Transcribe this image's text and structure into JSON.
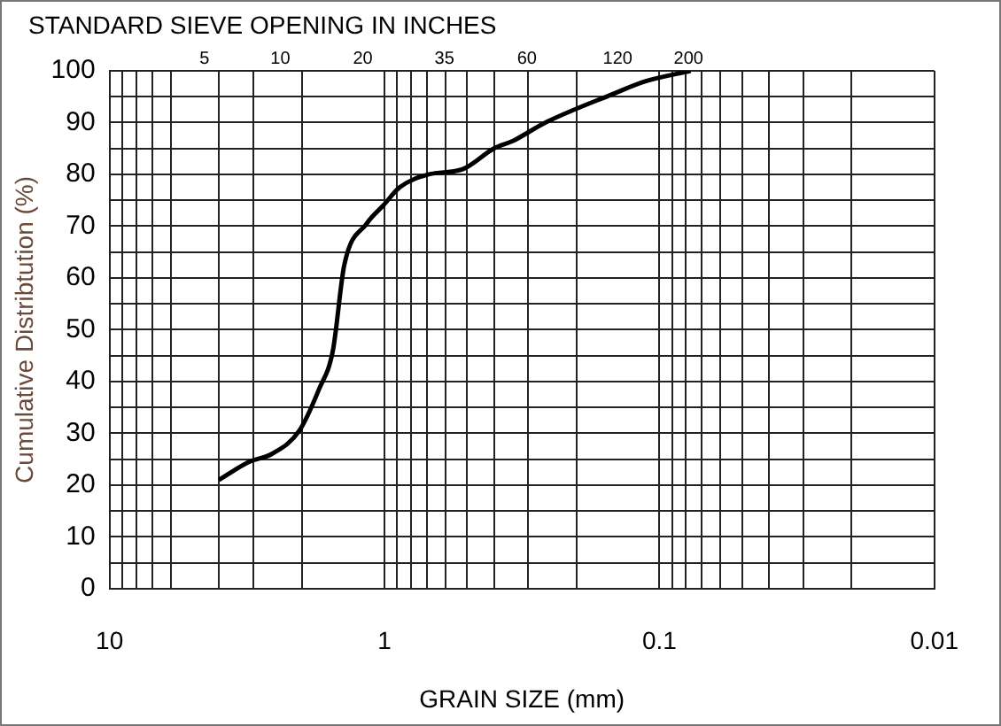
{
  "chart_data": {
    "type": "line",
    "x2label": "STANDARD SIEVE OPENING IN INCHES",
    "xlabel": "GRAIN SIZE (mm)",
    "ylabel": "Cumulative Distribtution (%)",
    "x": [
      4.0,
      3.1,
      2.57,
      2.04,
      1.73,
      1.54,
      1.4,
      1.16,
      1.01,
      0.88,
      0.69,
      0.52,
      0.4,
      0.34,
      0.26,
      0.148,
      0.112,
      0.077
    ],
    "series": [
      {
        "color": "#000000",
        "values": [
          21,
          24.5,
          26,
          30.5,
          38.5,
          46,
          62.5,
          70.5,
          74,
          77.5,
          80,
          81,
          85,
          86.5,
          90,
          95.5,
          98,
          100
        ]
      }
    ],
    "log": "x",
    "xlim": [
      10,
      0.01
    ],
    "xticks": [
      10,
      {
        "value": 9,
        "label": null
      },
      {
        "value": 8,
        "label": null
      },
      {
        "value": 7,
        "label": null
      },
      {
        "value": 6,
        "label": null
      },
      {
        "value": 4,
        "label": null
      },
      {
        "value": 3,
        "label": null
      },
      {
        "value": 2,
        "label": null
      },
      1,
      {
        "value": 0.9,
        "label": null
      },
      {
        "value": 0.8,
        "label": null
      },
      {
        "value": 0.7,
        "label": null
      },
      {
        "value": 0.6,
        "label": null
      },
      {
        "value": 0.5,
        "label": null
      },
      {
        "value": 0.4,
        "label": null
      },
      {
        "value": 0.3,
        "label": null
      },
      {
        "value": 0.2,
        "label": null
      },
      0.1,
      {
        "value": 0.09,
        "label": null
      },
      {
        "value": 0.08,
        "label": null
      },
      {
        "value": 0.07,
        "label": null
      },
      {
        "value": 0.06,
        "label": null
      },
      {
        "value": 0.05,
        "label": null
      },
      {
        "value": 0.04,
        "label": null
      },
      {
        "value": 0.03,
        "label": null
      },
      {
        "value": 0.02,
        "label": null
      },
      0.01
    ],
    "annotations": [
      "5",
      "10",
      "20",
      "35",
      "60",
      "120",
      "200"
    ],
    "ylim": [
      0,
      100
    ],
    "yticks": [
      0,
      {
        "value": 5,
        "label": null
      },
      10,
      {
        "value": 15,
        "label": null
      },
      20,
      {
        "value": 25,
        "label": null
      },
      30,
      {
        "value": 35,
        "label": null
      },
      40,
      {
        "value": 45,
        "label": null
      },
      50,
      {
        "value": 55,
        "label": null
      },
      60,
      {
        "value": 65,
        "label": null
      },
      70,
      {
        "value": 75,
        "label": null
      },
      80,
      {
        "value": 85,
        "label": null
      },
      90,
      {
        "value": 95,
        "label": null
      },
      100
    ],
    "grid": true,
    "marker": "none",
    "line_style": "solid",
    "legend": false
  }
}
